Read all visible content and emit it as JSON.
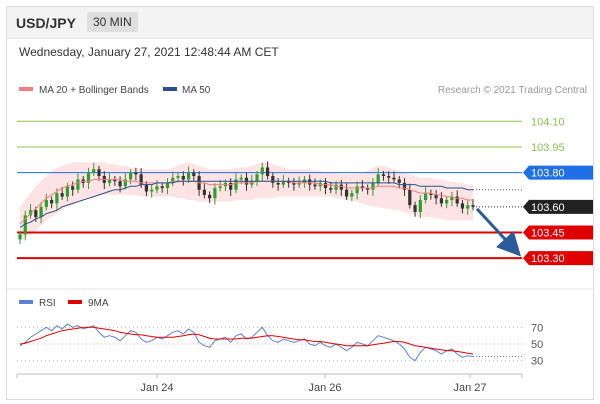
{
  "header": {
    "symbol": "USD/JPY",
    "timeframe": "30 MIN"
  },
  "datetime": "Wednesday, January 27, 2021 12:48:44 AM CET",
  "credit": "Research © 2021 Trading Central",
  "colors": {
    "ma20": "#f08080",
    "ma50": "#2b4f8e",
    "bollinger_fill": "#fde0e0",
    "resistance": "#8bc34a",
    "pivot": "#1e6fe8",
    "support": "#e00000",
    "up_candle": "#2ca02c",
    "down_candle": "#333333",
    "rsi": "#5b7fd6",
    "rsi_ma": "#e00000",
    "arrow": "#2a5b9a"
  },
  "chart_data": [
    {
      "type": "candlestick",
      "legend": [
        {
          "name": "MA 20 + Bollinger Bands",
          "color": "#f08080"
        },
        {
          "name": "MA 50",
          "color": "#2b4f8e"
        }
      ],
      "xticks": [
        "Jan 24",
        "Jan 26",
        "Jan 27"
      ],
      "ylim": [
        103.19,
        104.16
      ],
      "levels": [
        {
          "value": 104.1,
          "label": "104.10",
          "kind": "resistance"
        },
        {
          "value": 103.95,
          "label": "103.95",
          "kind": "resistance"
        },
        {
          "value": 103.8,
          "label": "103.80",
          "kind": "pivot"
        },
        {
          "value": 103.45,
          "label": "103.45",
          "kind": "support"
        },
        {
          "value": 103.3,
          "label": "103.30",
          "kind": "support"
        }
      ],
      "last_price": {
        "value": 103.6,
        "label": "103.60"
      },
      "candles_close": [
        103.44,
        103.55,
        103.58,
        103.54,
        103.6,
        103.64,
        103.62,
        103.68,
        103.66,
        103.72,
        103.7,
        103.76,
        103.74,
        103.8,
        103.82,
        103.78,
        103.74,
        103.76,
        103.75,
        103.72,
        103.76,
        103.8,
        103.79,
        103.73,
        103.69,
        103.7,
        103.72,
        103.71,
        103.74,
        103.77,
        103.78,
        103.76,
        103.8,
        103.78,
        103.7,
        103.67,
        103.65,
        103.71,
        103.72,
        103.74,
        103.7,
        103.76,
        103.77,
        103.73,
        103.75,
        103.79,
        103.83,
        103.78,
        103.74,
        103.73,
        103.75,
        103.74,
        103.73,
        103.74,
        103.76,
        103.73,
        103.72,
        103.74,
        103.71,
        103.7,
        103.73,
        103.7,
        103.66,
        103.68,
        103.72,
        103.71,
        103.7,
        103.74,
        103.79,
        103.78,
        103.77,
        103.76,
        103.74,
        103.7,
        103.61,
        103.57,
        103.64,
        103.68,
        103.67,
        103.65,
        103.62,
        103.64,
        103.66,
        103.62,
        103.59,
        103.61,
        103.6
      ],
      "ma20": [
        103.5,
        103.53,
        103.56,
        103.59,
        103.62,
        103.65,
        103.67,
        103.69,
        103.71,
        103.72,
        103.73,
        103.74,
        103.75,
        103.75,
        103.76,
        103.76,
        103.76,
        103.76,
        103.76,
        103.76,
        103.75,
        103.75,
        103.75,
        103.74,
        103.74,
        103.74,
        103.74,
        103.74,
        103.74,
        103.75,
        103.75,
        103.75,
        103.75,
        103.75,
        103.74,
        103.74,
        103.73,
        103.73,
        103.73,
        103.73,
        103.73,
        103.74,
        103.74,
        103.74,
        103.74,
        103.75,
        103.75,
        103.75,
        103.75,
        103.75,
        103.75,
        103.75,
        103.74,
        103.74,
        103.74,
        103.74,
        103.74,
        103.73,
        103.73,
        103.73,
        103.72,
        103.72,
        103.71,
        103.71,
        103.71,
        103.71,
        103.71,
        103.71,
        103.72,
        103.72,
        103.72,
        103.72,
        103.71,
        103.71,
        103.7,
        103.69,
        103.68,
        103.68,
        103.68,
        103.67,
        103.67,
        103.66,
        103.66,
        103.65,
        103.65,
        103.64,
        103.64
      ],
      "bb_upper": [
        103.6,
        103.64,
        103.68,
        103.72,
        103.75,
        103.78,
        103.81,
        103.83,
        103.84,
        103.85,
        103.86,
        103.86,
        103.86,
        103.86,
        103.86,
        103.86,
        103.86,
        103.85,
        103.85,
        103.84,
        103.84,
        103.83,
        103.83,
        103.82,
        103.82,
        103.82,
        103.82,
        103.82,
        103.82,
        103.83,
        103.84,
        103.85,
        103.86,
        103.85,
        103.84,
        103.83,
        103.82,
        103.82,
        103.82,
        103.82,
        103.82,
        103.83,
        103.83,
        103.83,
        103.84,
        103.85,
        103.86,
        103.86,
        103.85,
        103.84,
        103.83,
        103.82,
        103.82,
        103.82,
        103.82,
        103.82,
        103.81,
        103.81,
        103.8,
        103.8,
        103.8,
        103.79,
        103.79,
        103.79,
        103.79,
        103.8,
        103.81,
        103.83,
        103.84,
        103.84,
        103.83,
        103.82,
        103.81,
        103.8,
        103.79,
        103.78,
        103.77,
        103.77,
        103.77,
        103.76,
        103.76,
        103.75,
        103.75,
        103.74,
        103.74,
        103.73,
        103.73
      ],
      "bb_lower": [
        103.4,
        103.42,
        103.44,
        103.46,
        103.49,
        103.52,
        103.54,
        103.56,
        103.58,
        103.6,
        103.61,
        103.62,
        103.64,
        103.65,
        103.66,
        103.67,
        103.67,
        103.67,
        103.67,
        103.67,
        103.67,
        103.67,
        103.67,
        103.66,
        103.66,
        103.66,
        103.66,
        103.66,
        103.66,
        103.66,
        103.65,
        103.65,
        103.64,
        103.64,
        103.63,
        103.63,
        103.63,
        103.63,
        103.63,
        103.63,
        103.63,
        103.64,
        103.64,
        103.64,
        103.64,
        103.65,
        103.65,
        103.65,
        103.65,
        103.66,
        103.66,
        103.66,
        103.66,
        103.66,
        103.66,
        103.66,
        103.66,
        103.66,
        103.66,
        103.66,
        103.65,
        103.65,
        103.64,
        103.64,
        103.63,
        103.62,
        103.61,
        103.6,
        103.6,
        103.59,
        103.59,
        103.58,
        103.58,
        103.57,
        103.56,
        103.55,
        103.54,
        103.54,
        103.54,
        103.53,
        103.53,
        103.52,
        103.52,
        103.52,
        103.52,
        103.52,
        103.52
      ],
      "ma50": [
        103.48,
        103.5,
        103.51,
        103.53,
        103.54,
        103.56,
        103.57,
        103.58,
        103.6,
        103.61,
        103.62,
        103.63,
        103.64,
        103.65,
        103.66,
        103.67,
        103.68,
        103.69,
        103.7,
        103.7,
        103.71,
        103.72,
        103.72,
        103.73,
        103.73,
        103.73,
        103.74,
        103.74,
        103.74,
        103.74,
        103.75,
        103.75,
        103.75,
        103.75,
        103.75,
        103.75,
        103.75,
        103.75,
        103.75,
        103.75,
        103.75,
        103.75,
        103.75,
        103.75,
        103.75,
        103.75,
        103.75,
        103.75,
        103.75,
        103.75,
        103.75,
        103.75,
        103.75,
        103.75,
        103.75,
        103.75,
        103.75,
        103.75,
        103.75,
        103.74,
        103.74,
        103.74,
        103.74,
        103.74,
        103.74,
        103.74,
        103.74,
        103.74,
        103.74,
        103.74,
        103.74,
        103.74,
        103.73,
        103.73,
        103.73,
        103.73,
        103.72,
        103.72,
        103.72,
        103.72,
        103.72,
        103.71,
        103.71,
        103.71,
        103.71,
        103.7,
        103.7
      ],
      "forecast": {
        "from": 103.6,
        "to": 103.3
      }
    },
    {
      "type": "line",
      "legend": [
        {
          "name": "RSI",
          "color": "#5b7fd6"
        },
        {
          "name": "9MA",
          "color": "#e00000"
        }
      ],
      "yticks": [
        70,
        50,
        30
      ],
      "ylim": [
        20,
        80
      ],
      "series": [
        {
          "name": "RSI",
          "values": [
            48,
            52,
            58,
            62,
            66,
            70,
            66,
            72,
            68,
            74,
            70,
            72,
            68,
            70,
            72,
            64,
            58,
            60,
            58,
            54,
            60,
            66,
            64,
            56,
            52,
            54,
            58,
            56,
            60,
            64,
            66,
            62,
            68,
            64,
            52,
            48,
            46,
            54,
            56,
            58,
            52,
            60,
            62,
            56,
            58,
            64,
            70,
            60,
            54,
            52,
            56,
            54,
            52,
            54,
            56,
            50,
            48,
            52,
            48,
            46,
            50,
            46,
            42,
            46,
            52,
            50,
            48,
            54,
            60,
            58,
            56,
            54,
            50,
            44,
            34,
            30,
            40,
            46,
            44,
            42,
            38,
            42,
            44,
            38,
            34,
            36,
            35
          ]
        },
        {
          "name": "9MA",
          "values": [
            50,
            51,
            53,
            55,
            57,
            60,
            62,
            64,
            66,
            67,
            68,
            69,
            70,
            70,
            70,
            69,
            68,
            67,
            66,
            64,
            63,
            62,
            61,
            61,
            60,
            59,
            58,
            58,
            58,
            58,
            59,
            60,
            61,
            62,
            61,
            59,
            57,
            56,
            56,
            56,
            56,
            56,
            57,
            57,
            57,
            58,
            59,
            60,
            60,
            59,
            58,
            57,
            56,
            55,
            55,
            54,
            53,
            53,
            52,
            51,
            50,
            49,
            48,
            48,
            48,
            48,
            48,
            49,
            50,
            51,
            52,
            53,
            53,
            52,
            50,
            48,
            47,
            46,
            45,
            44,
            43,
            42,
            42,
            41,
            40,
            39,
            38
          ]
        }
      ]
    }
  ]
}
